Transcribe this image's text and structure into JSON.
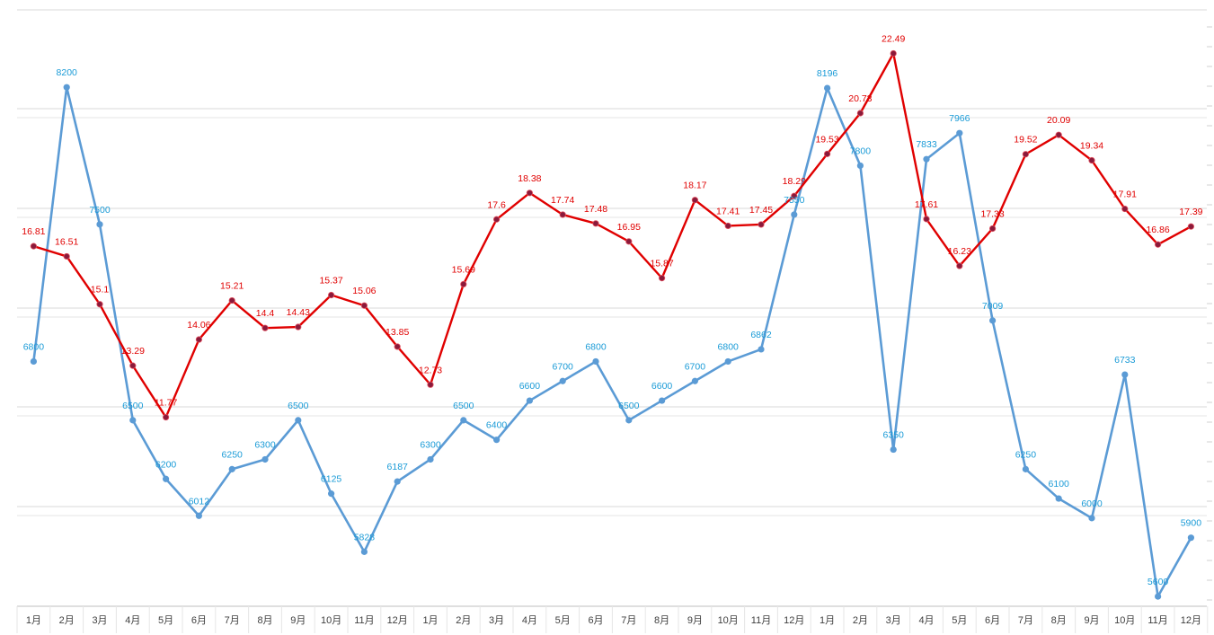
{
  "chart_data": {
    "type": "line",
    "categories": [
      "1月",
      "2月",
      "3月",
      "4月",
      "5月",
      "6月",
      "7月",
      "8月",
      "9月",
      "10月",
      "11月",
      "12月",
      "1月",
      "2月",
      "3月",
      "4月",
      "5月",
      "6月",
      "7月",
      "8月",
      "9月",
      "10月",
      "11月",
      "12月",
      "1月",
      "2月",
      "3月",
      "4月",
      "5月",
      "6月",
      "7月",
      "8月",
      "9月",
      "10月",
      "11月",
      "12月"
    ],
    "series": [
      {
        "color": "#5b9bd5",
        "values": [
          6800,
          8200,
          7500,
          6500,
          6200,
          6012,
          6250,
          6300,
          6500,
          6125,
          5828,
          6187,
          6300,
          6500,
          6400,
          6600,
          6700,
          6800,
          6500,
          6600,
          6700,
          6800,
          6862,
          7550,
          8196,
          7800,
          6350,
          7833,
          7966,
          7009,
          6250,
          6100,
          6000,
          6733,
          5600,
          5900
        ],
        "labels": [
          "6800",
          "8200",
          "7500",
          "6500",
          "6200",
          "6012",
          "6250",
          "6300",
          "6500",
          "6125",
          "5828",
          "6187",
          "6300",
          "6500",
          "6400",
          "6600",
          "6700",
          "6800",
          "6500",
          "6600",
          "6700",
          "6800",
          "6862",
          "7550",
          "8196",
          "7800",
          "6350",
          "7833",
          "7966",
          "7009",
          "6250",
          "6100",
          "6000",
          "6733",
          "5600",
          "5900"
        ],
        "label_color": "#1a9bd7"
      },
      {
        "color": "#e00000",
        "values": [
          16.81,
          16.51,
          15.1,
          13.29,
          11.77,
          14.06,
          15.21,
          14.4,
          14.43,
          15.37,
          15.06,
          13.85,
          12.73,
          15.69,
          17.6,
          18.38,
          17.74,
          17.48,
          16.95,
          15.87,
          18.17,
          17.41,
          17.45,
          18.29,
          19.53,
          20.73,
          22.49,
          17.61,
          16.23,
          17.33,
          19.52,
          20.09,
          19.34,
          17.91,
          16.86,
          17.39
        ],
        "labels": [
          "16.81",
          "16.51",
          "15.1",
          "13.29",
          "11.77",
          "14.06",
          "15.21",
          "14.4",
          "14.43",
          "15.37",
          "15.06",
          "13.85",
          "12.73",
          "15.69",
          "17.6",
          "18.38",
          "17.74",
          "17.48",
          "16.95",
          "15.87",
          "18.17",
          "17.41",
          "17.45",
          "18.29",
          "19.53",
          "20.73",
          "22.49",
          "17.61",
          "16.23",
          "17.33",
          "19.52",
          "20.09",
          "19.34",
          "17.91",
          "16.86",
          "17.39"
        ],
        "label_color": "#e00000",
        "marker_color": "#8b1a3a"
      }
    ],
    "axes": {
      "left": {
        "ylim": [
          5550,
          8600
        ],
        "visible_labels": false
      },
      "right": {
        "ylim": [
          6.2,
          23.8
        ],
        "visible_labels": false
      }
    },
    "grid": true,
    "legend": "none"
  }
}
